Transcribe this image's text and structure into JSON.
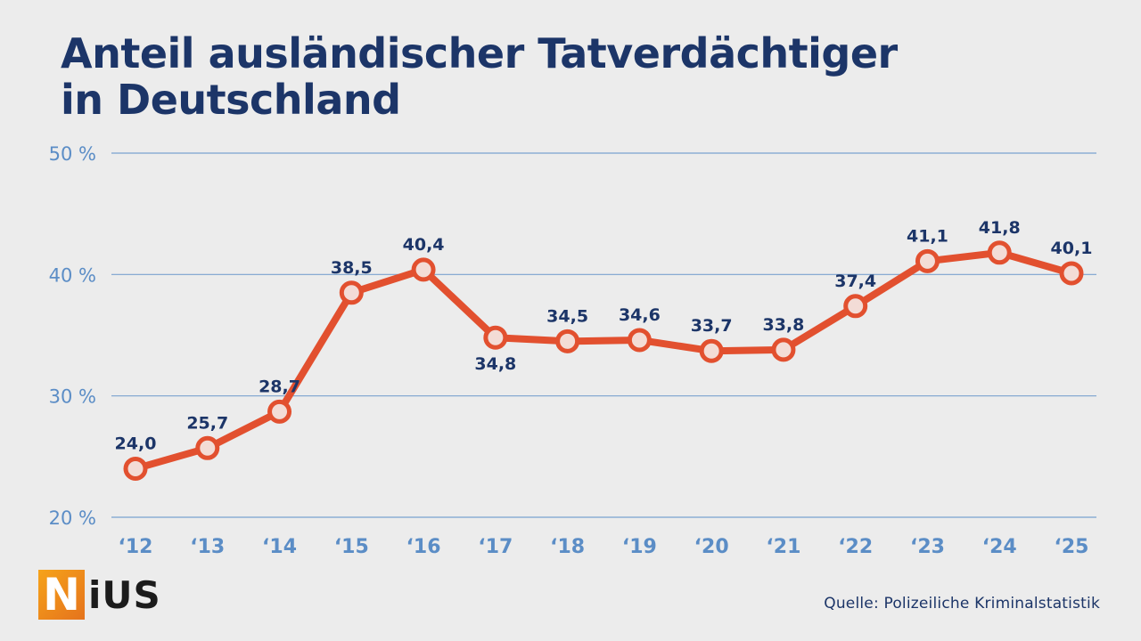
{
  "title": {
    "line1": "Anteil ausländischer Tatverdächtiger",
    "line2": "in Deutschland"
  },
  "logo": {
    "first_letter": "N",
    "rest": "iUS"
  },
  "source": "Quelle: Polizeiliche Kriminalstatistik",
  "colors": {
    "title": "#1c3568",
    "line": "#e2502f",
    "marker_fill": "#f3dcd6",
    "axis_text": "#5b8dc6",
    "gridline": "#7aa2cf",
    "data_label": "#1c3568"
  },
  "chart_data": {
    "type": "line",
    "categories": [
      "‘12",
      "‘13",
      "‘14",
      "‘15",
      "‘16",
      "‘17",
      "‘18",
      "‘19",
      "‘20",
      "‘21",
      "‘22",
      "‘23",
      "‘24",
      "‘25"
    ],
    "values": [
      24.0,
      25.7,
      28.7,
      38.5,
      40.4,
      34.8,
      34.5,
      34.6,
      33.7,
      33.8,
      37.4,
      41.1,
      41.8,
      40.1
    ],
    "data_labels": [
      "24,0",
      "25,7",
      "28,7",
      "38,5",
      "40,4",
      "34,8",
      "34,5",
      "34,6",
      "33,7",
      "33,8",
      "37,4",
      "41,1",
      "41,8",
      "40,1"
    ],
    "label_positions": [
      "above",
      "above",
      "above",
      "above",
      "above",
      "below",
      "above",
      "above",
      "above",
      "above",
      "above",
      "above",
      "above",
      "above"
    ],
    "yticks": [
      20,
      30,
      40,
      50
    ],
    "ytick_labels": [
      "20 %",
      "30 %",
      "40 %",
      "50 %"
    ],
    "ylim": [
      20,
      50
    ],
    "grid": true,
    "xlabel": "",
    "ylabel": ""
  }
}
